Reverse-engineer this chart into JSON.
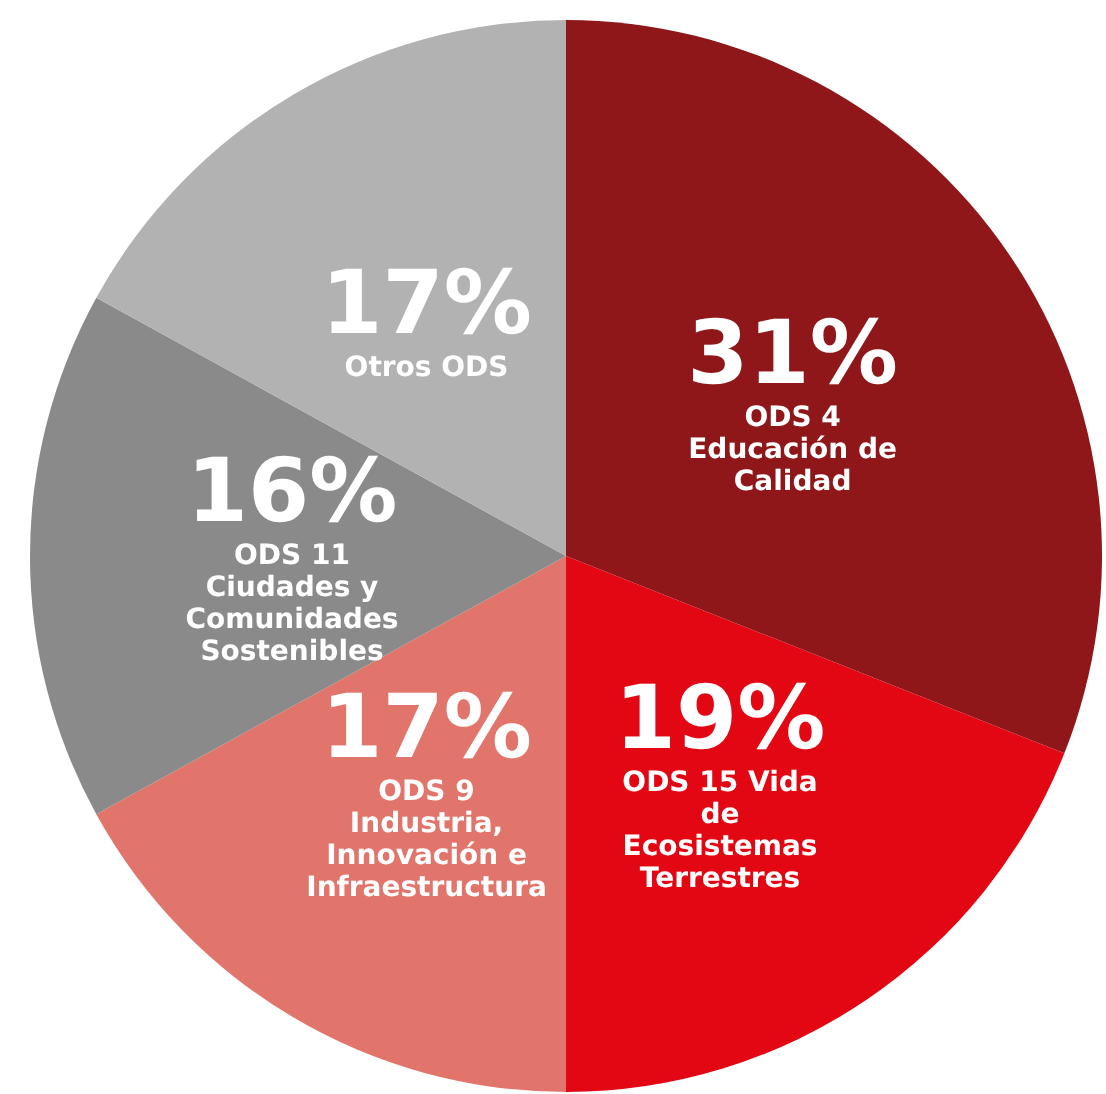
{
  "chart_data": {
    "type": "pie",
    "categories": [
      "ODS 4 Educación de Calidad",
      "ODS 15 Vida de Ecosistemas Terrestres",
      "ODS 9 Industria, Innovación e Infraestructura",
      "ODS 11 Ciudades y Comunidades Sostenibles",
      "Otros ODS"
    ],
    "values": [
      31,
      19,
      17,
      16,
      17
    ],
    "value_labels": [
      "31%",
      "19%",
      "17%",
      "16%",
      "17%"
    ],
    "colors": [
      "#8f1619",
      "#e30613",
      "#e2756b",
      "#8a8a8a",
      "#b2b2b2"
    ],
    "legend": false
  }
}
